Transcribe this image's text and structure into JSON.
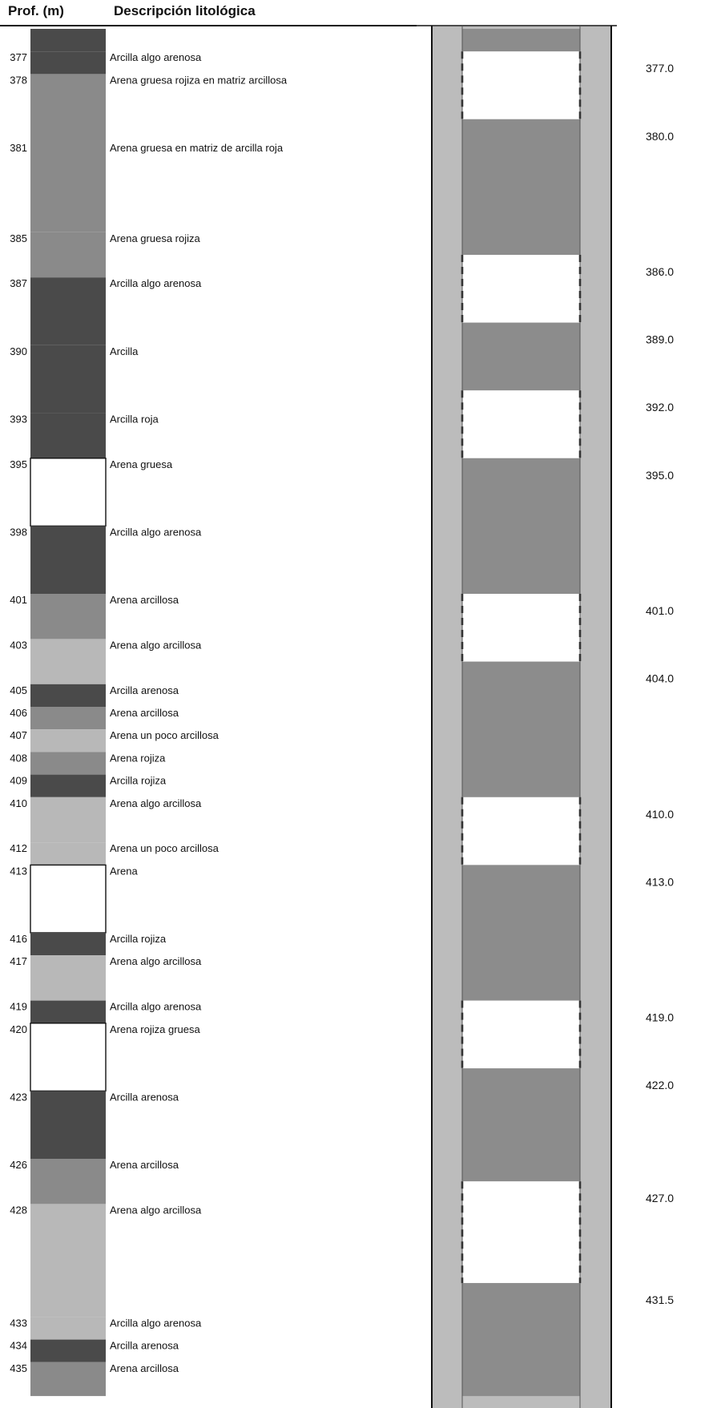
{
  "header": {
    "depth_column": "Prof. (m)",
    "description_column": "Descripción litológica"
  },
  "colors": {
    "clay": "#4a4a4a",
    "sand_clayey": "#8a8a8a",
    "sand_slightly_clayey": "#b8b8b8",
    "sand_clean": "#ffffff",
    "casing_wall": "#bcbcbc",
    "casing_blank": "#8c8c8c",
    "screen": "#ffffff",
    "outline": "#111111"
  },
  "lithology": [
    {
      "depth": "377",
      "description": "Arcilla algo arenosa",
      "top": 377,
      "bottom": 378,
      "material": "clay"
    },
    {
      "depth": "378",
      "description": "Arena gruesa rojiza en matriz arcillosa",
      "top": 378,
      "bottom": 381,
      "material": "sand_clayey"
    },
    {
      "depth": "381",
      "description": "Arena gruesa en matriz de arcilla roja",
      "top": 381,
      "bottom": 385,
      "material": "sand_clayey"
    },
    {
      "depth": "385",
      "description": "Arena gruesa rojiza",
      "top": 385,
      "bottom": 387,
      "material": "sand_clayey"
    },
    {
      "depth": "387",
      "description": "Arcilla algo arenosa",
      "top": 387,
      "bottom": 390,
      "material": "clay"
    },
    {
      "depth": "390",
      "description": "Arcilla",
      "top": 390,
      "bottom": 393,
      "material": "clay"
    },
    {
      "depth": "393",
      "description": "Arcilla roja",
      "top": 393,
      "bottom": 395,
      "material": "clay"
    },
    {
      "depth": "395",
      "description": "Arena gruesa",
      "top": 395,
      "bottom": 398,
      "material": "sand_clean"
    },
    {
      "depth": "398",
      "description": "Arcilla algo arenosa",
      "top": 398,
      "bottom": 401,
      "material": "clay"
    },
    {
      "depth": "401",
      "description": "Arena arcillosa",
      "top": 401,
      "bottom": 403,
      "material": "sand_clayey"
    },
    {
      "depth": "403",
      "description": "Arena algo arcillosa",
      "top": 403,
      "bottom": 405,
      "material": "sand_slightly_clayey"
    },
    {
      "depth": "405",
      "description": "Arcilla arenosa",
      "top": 405,
      "bottom": 406,
      "material": "clay"
    },
    {
      "depth": "406",
      "description": "Arena arcillosa",
      "top": 406,
      "bottom": 407,
      "material": "sand_clayey"
    },
    {
      "depth": "407",
      "description": "Arena un poco arcillosa",
      "top": 407,
      "bottom": 408,
      "material": "sand_slightly_clayey"
    },
    {
      "depth": "408",
      "description": "Arena rojiza",
      "top": 408,
      "bottom": 409,
      "material": "sand_clayey"
    },
    {
      "depth": "409",
      "description": "Arcilla rojiza",
      "top": 409,
      "bottom": 410,
      "material": "clay"
    },
    {
      "depth": "410",
      "description": "Arena algo arcillosa",
      "top": 410,
      "bottom": 412,
      "material": "sand_slightly_clayey"
    },
    {
      "depth": "412",
      "description": "Arena un poco arcillosa",
      "top": 412,
      "bottom": 413,
      "material": "sand_slightly_clayey"
    },
    {
      "depth": "413",
      "description": "Arena",
      "top": 413,
      "bottom": 416,
      "material": "sand_clean"
    },
    {
      "depth": "416",
      "description": "Arcilla rojiza",
      "top": 416,
      "bottom": 417,
      "material": "clay"
    },
    {
      "depth": "417",
      "description": "Arena algo arcillosa",
      "top": 417,
      "bottom": 419,
      "material": "sand_slightly_clayey"
    },
    {
      "depth": "419",
      "description": "Arcilla algo arenosa",
      "top": 419,
      "bottom": 420,
      "material": "clay"
    },
    {
      "depth": "420",
      "description": "Arena rojiza gruesa",
      "top": 420,
      "bottom": 423,
      "material": "sand_clean"
    },
    {
      "depth": "423",
      "description": "Arcilla arenosa",
      "top": 423,
      "bottom": 426,
      "material": "clay"
    },
    {
      "depth": "426",
      "description": "Arena arcillosa",
      "top": 426,
      "bottom": 428,
      "material": "sand_clayey"
    },
    {
      "depth": "428",
      "description": "Arena algo arcillosa",
      "top": 428,
      "bottom": 433,
      "material": "sand_slightly_clayey"
    },
    {
      "depth": "433",
      "description": "Arcilla algo arenosa",
      "top": 433,
      "bottom": 434,
      "material": "sand_slightly_clayey"
    },
    {
      "depth": "434",
      "description": "Arcilla arenosa",
      "top": 434,
      "bottom": 435,
      "material": "clay"
    },
    {
      "depth": "435",
      "description": "Arena arcillosa",
      "top": 435,
      "bottom": 436.5,
      "material": "sand_clayey"
    }
  ],
  "well_design": {
    "sections": [
      {
        "type": "blank",
        "top": 376,
        "bottom": 377
      },
      {
        "type": "screen",
        "top": 377,
        "bottom": 380
      },
      {
        "type": "blank",
        "top": 380,
        "bottom": 386
      },
      {
        "type": "screen",
        "top": 386,
        "bottom": 389
      },
      {
        "type": "blank",
        "top": 389,
        "bottom": 392
      },
      {
        "type": "screen",
        "top": 392,
        "bottom": 395
      },
      {
        "type": "blank",
        "top": 395,
        "bottom": 401
      },
      {
        "type": "screen",
        "top": 401,
        "bottom": 404
      },
      {
        "type": "blank",
        "top": 404,
        "bottom": 410
      },
      {
        "type": "screen",
        "top": 410,
        "bottom": 413
      },
      {
        "type": "blank",
        "top": 413,
        "bottom": 419
      },
      {
        "type": "screen",
        "top": 419,
        "bottom": 422
      },
      {
        "type": "blank",
        "top": 422,
        "bottom": 427
      },
      {
        "type": "screen",
        "top": 427,
        "bottom": 431.5
      },
      {
        "type": "blank",
        "top": 431.5,
        "bottom": 436.5
      }
    ],
    "depth_labels": [
      {
        "text": "377.0",
        "depth": 377
      },
      {
        "text": "380.0",
        "depth": 380
      },
      {
        "text": "386.0",
        "depth": 386
      },
      {
        "text": "389.0",
        "depth": 389
      },
      {
        "text": "392.0",
        "depth": 392
      },
      {
        "text": "395.0",
        "depth": 395
      },
      {
        "text": "401.0",
        "depth": 401
      },
      {
        "text": "404.0",
        "depth": 404
      },
      {
        "text": "410.0",
        "depth": 410
      },
      {
        "text": "413.0",
        "depth": 413
      },
      {
        "text": "419.0",
        "depth": 419
      },
      {
        "text": "422.0",
        "depth": 422
      },
      {
        "text": "427.0",
        "depth": 427
      },
      {
        "text": "431.5",
        "depth": 431.5
      }
    ]
  }
}
